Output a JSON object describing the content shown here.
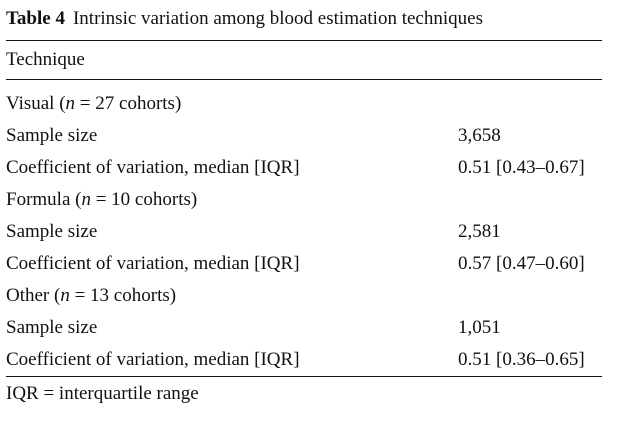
{
  "caption": {
    "label": "Table 4",
    "text": "Intrinsic variation among blood estimation techniques"
  },
  "header": {
    "technique": "Technique"
  },
  "groups": [
    {
      "name": "Visual",
      "n_label": "n",
      "n_text": " = 27 cohorts)",
      "rows": [
        {
          "label": "Sample size",
          "value": "3,658"
        },
        {
          "label": "Coefficient of variation, median [IQR]",
          "value": "0.51 [0.43–0.67]"
        }
      ]
    },
    {
      "name": "Formula",
      "n_label": "n",
      "n_text": " = 10 cohorts)",
      "rows": [
        {
          "label": "Sample size",
          "value": "2,581"
        },
        {
          "label": "Coefficient of variation, median [IQR]",
          "value": "0.57 [0.47–0.60]"
        }
      ]
    },
    {
      "name": "Other",
      "n_label": "n",
      "n_text": " = 13 cohorts)",
      "rows": [
        {
          "label": "Sample size",
          "value": "1,051"
        },
        {
          "label": "Coefficient of variation, median [IQR]",
          "value": "0.51 [0.36–0.65]"
        }
      ]
    }
  ],
  "footnote": "IQR = interquartile range"
}
